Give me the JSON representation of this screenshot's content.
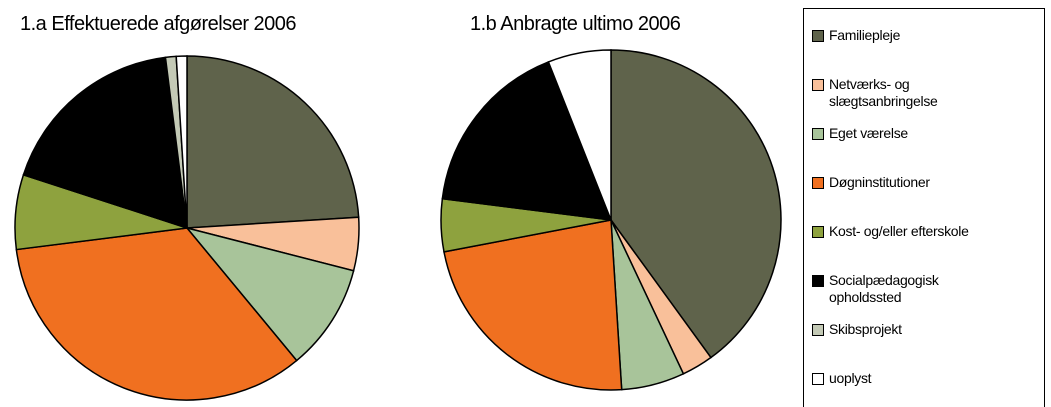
{
  "chart_data": [
    {
      "type": "pie",
      "title": "1.a Effektuerede afgørelser 2006",
      "categories": [
        "Familiepleje",
        "Netværks- og slægtsanbringelse",
        "Eget værelse",
        "Døgninstitutioner",
        "Kost- og/eller efterskole",
        "Socialpædagogisk opholdssted",
        "Skibsprojekt",
        "uoplyst"
      ],
      "values": [
        24,
        5,
        10,
        34,
        7,
        18,
        1,
        1
      ],
      "colors": [
        "#5f634b",
        "#f9c09a",
        "#a8c49a",
        "#f07020",
        "#8ea23e",
        "#000000",
        "#c4cab6",
        "#ffffff"
      ]
    },
    {
      "type": "pie",
      "title": "1.b Anbragte ultimo 2006",
      "categories": [
        "Familiepleje",
        "Netværks- og slægtsanbringelse",
        "Eget værelse",
        "Døgninstitutioner",
        "Kost- og/eller efterskole",
        "Socialpædagogisk opholdssted",
        "Skibsprojekt",
        "uoplyst"
      ],
      "values": [
        40,
        3,
        6,
        23,
        5,
        17,
        0,
        6
      ],
      "colors": [
        "#5f634b",
        "#f9c09a",
        "#a8c49a",
        "#f07020",
        "#8ea23e",
        "#000000",
        "#c4cab6",
        "#ffffff"
      ]
    }
  ]
}
